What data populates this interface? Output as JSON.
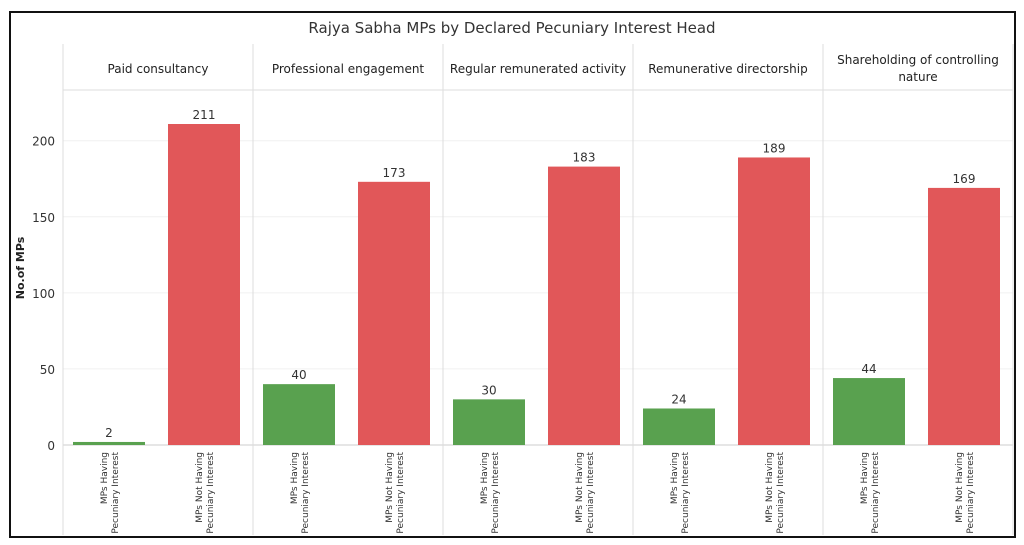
{
  "chart_data": {
    "type": "bar",
    "title": "Rajya Sabha MPs by Declared Pecuniary Interest Head",
    "ylabel": "No.of MPs",
    "xlabel": "",
    "ylim": [
      0,
      225
    ],
    "yticks": [
      0,
      50,
      100,
      150,
      200
    ],
    "grid": true,
    "panels": [
      "Paid consultancy",
      "Professional engagement",
      "Regular remunerated activity",
      "Remunerative directorship",
      "Shareholding of controlling nature"
    ],
    "categories": [
      "MPs Having Pecuniary Interest",
      "MPs Not Having Pecuniary Interest"
    ],
    "category_lines": [
      [
        "MPs Having",
        "Pecuniary Interest"
      ],
      [
        "MPs Not Having",
        "Pecuniary Interest"
      ]
    ],
    "values": [
      [
        2,
        211
      ],
      [
        40,
        173
      ],
      [
        30,
        183
      ],
      [
        24,
        189
      ],
      [
        44,
        169
      ]
    ],
    "colors": [
      "#59a14f",
      "#e15759"
    ]
  }
}
